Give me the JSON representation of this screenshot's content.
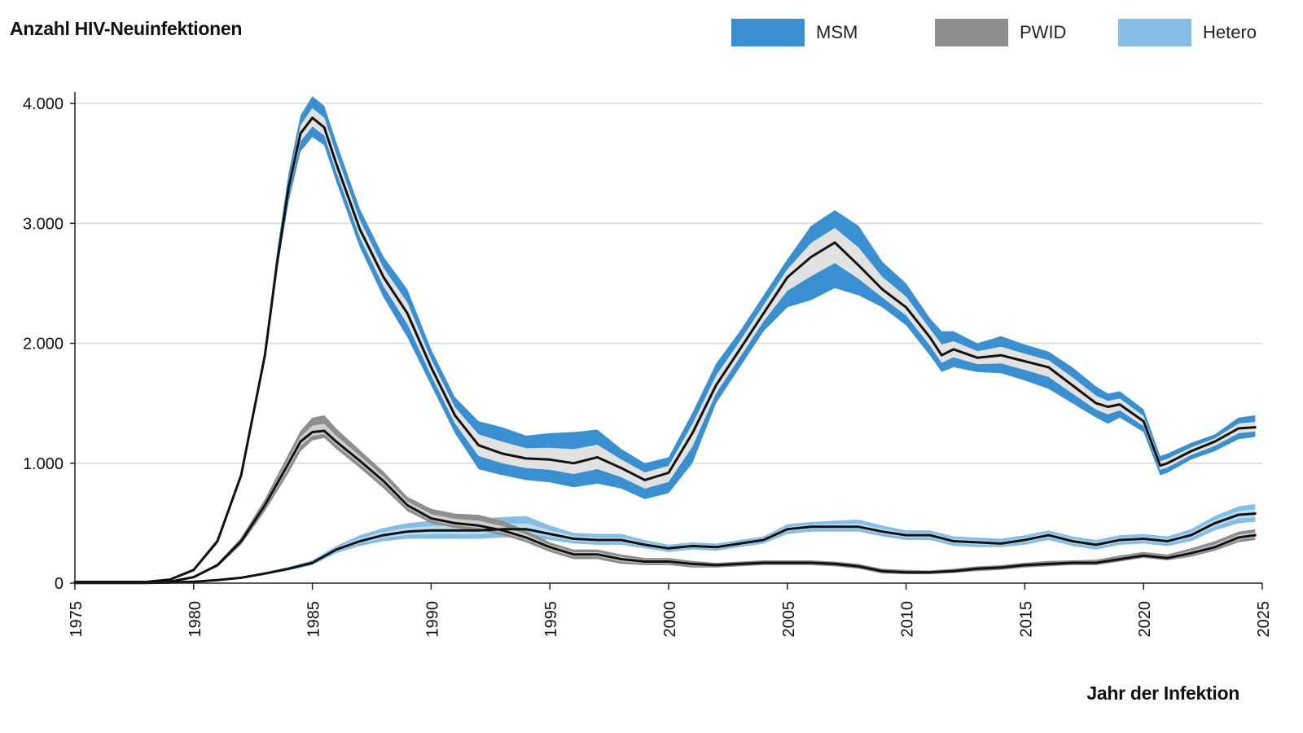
{
  "title": "Anzahl HIV-Neuinfektionen",
  "legend": [
    {
      "name": "MSM",
      "color": "#3a8fd0"
    },
    {
      "name": "PWID",
      "color": "#8e8e8e"
    },
    {
      "name": "Hetero",
      "color": "#86bde5"
    }
  ],
  "chart_data": {
    "type": "area",
    "title": "Anzahl HIV-Neuinfektionen",
    "xlabel": "Jahr der Infektion",
    "ylabel": "",
    "xlim": [
      1975,
      2025
    ],
    "ylim": [
      0,
      4000
    ],
    "x_ticks": [
      1975,
      1980,
      1985,
      1990,
      1995,
      2000,
      2005,
      2010,
      2015,
      2020,
      2025
    ],
    "y_ticks": [
      {
        "value": 0,
        "label": "0"
      },
      {
        "value": 1000,
        "label": "1.000"
      },
      {
        "value": 2000,
        "label": "2.000"
      },
      {
        "value": 3000,
        "label": "3.000"
      },
      {
        "value": 4000,
        "label": "4.000"
      }
    ],
    "grid": "horizontal",
    "legend_position": "top-right",
    "series": [
      {
        "name": "MSM",
        "color": "#3a8fd0",
        "inner_color": "#e2e2e2",
        "x": [
          1975,
          1978,
          1979,
          1980,
          1981,
          1982,
          1983,
          1983.5,
          1984,
          1984.5,
          1985,
          1985.5,
          1986,
          1987,
          1988,
          1989,
          1990,
          1991,
          1992,
          1993,
          1994,
          1995,
          1996,
          1997,
          1998,
          1999,
          2000,
          2001,
          2002,
          2003,
          2004,
          2005,
          2006,
          2007,
          2008,
          2009,
          2010,
          2011,
          2011.5,
          2012,
          2013,
          2014,
          2015,
          2016,
          2017,
          2018,
          2018.5,
          2019,
          2020,
          2020.7,
          2021,
          2022,
          2023,
          2024,
          2024.7
        ],
        "y": [
          10,
          10,
          30,
          110,
          350,
          900,
          1900,
          2650,
          3300,
          3750,
          3880,
          3800,
          3500,
          2950,
          2550,
          2250,
          1800,
          1400,
          1150,
          1080,
          1040,
          1030,
          1000,
          1050,
          960,
          860,
          920,
          1250,
          1650,
          1950,
          2250,
          2550,
          2720,
          2840,
          2650,
          2450,
          2300,
          2050,
          1900,
          1950,
          1880,
          1900,
          1850,
          1800,
          1650,
          1500,
          1470,
          1490,
          1350,
          980,
          1000,
          1100,
          1180,
          1290,
          1300
        ],
        "lower": [
          10,
          10,
          28,
          100,
          330,
          870,
          1850,
          2600,
          3180,
          3600,
          3720,
          3650,
          3350,
          2800,
          2380,
          2050,
          1650,
          1250,
          950,
          900,
          860,
          840,
          800,
          830,
          790,
          700,
          750,
          1000,
          1500,
          1800,
          2100,
          2300,
          2360,
          2460,
          2400,
          2300,
          2150,
          1900,
          1760,
          1800,
          1760,
          1750,
          1690,
          1620,
          1500,
          1380,
          1330,
          1380,
          1260,
          900,
          920,
          1030,
          1100,
          1200,
          1220
        ],
        "upper": [
          10,
          10,
          32,
          120,
          370,
          930,
          1950,
          2750,
          3420,
          3900,
          4060,
          3980,
          3680,
          3120,
          2720,
          2450,
          1950,
          1550,
          1350,
          1300,
          1230,
          1250,
          1260,
          1280,
          1120,
          1000,
          1050,
          1420,
          1830,
          2100,
          2400,
          2700,
          2980,
          3110,
          2980,
          2680,
          2500,
          2210,
          2100,
          2100,
          2000,
          2060,
          1990,
          1930,
          1800,
          1640,
          1580,
          1600,
          1450,
          1060,
          1080,
          1170,
          1240,
          1380,
          1400
        ]
      },
      {
        "name": "PWID",
        "color": "#8e8e8e",
        "inner_color": "#cfcfcf",
        "x": [
          1975,
          1978,
          1979,
          1980,
          1981,
          1982,
          1983,
          1984,
          1984.5,
          1985,
          1985.5,
          1986,
          1987,
          1988,
          1989,
          1990,
          1991,
          1992,
          1993,
          1994,
          1995,
          1996,
          1997,
          1998,
          1999,
          2000,
          2001,
          2002,
          2003,
          2004,
          2005,
          2006,
          2007,
          2008,
          2009,
          2010,
          2011,
          2012,
          2013,
          2014,
          2015,
          2016,
          2017,
          2018,
          2019,
          2020,
          2021,
          2022,
          2023,
          2024,
          2024.7
        ],
        "y": [
          5,
          5,
          12,
          50,
          150,
          350,
          650,
          1000,
          1180,
          1260,
          1270,
          1180,
          1020,
          850,
          650,
          540,
          500,
          480,
          440,
          380,
          300,
          240,
          240,
          200,
          180,
          180,
          160,
          150,
          160,
          170,
          170,
          170,
          160,
          140,
          100,
          90,
          90,
          100,
          120,
          130,
          150,
          160,
          170,
          170,
          200,
          230,
          210,
          250,
          300,
          380,
          400
        ],
        "lower": [
          5,
          5,
          10,
          45,
          135,
          320,
          600,
          920,
          1100,
          1190,
          1210,
          1120,
          960,
          790,
          600,
          500,
          460,
          440,
          400,
          340,
          260,
          200,
          200,
          160,
          150,
          150,
          130,
          130,
          140,
          150,
          150,
          150,
          140,
          120,
          80,
          75,
          75,
          85,
          100,
          110,
          130,
          140,
          150,
          150,
          180,
          210,
          190,
          220,
          270,
          340,
          360
        ],
        "upper": [
          5,
          5,
          14,
          55,
          165,
          380,
          700,
          1080,
          1270,
          1380,
          1400,
          1290,
          1110,
          930,
          720,
          620,
          580,
          570,
          520,
          440,
          340,
          280,
          280,
          240,
          210,
          210,
          185,
          170,
          180,
          190,
          190,
          190,
          180,
          160,
          120,
          110,
          105,
          120,
          140,
          150,
          170,
          185,
          190,
          195,
          230,
          260,
          240,
          290,
          350,
          430,
          450
        ]
      },
      {
        "name": "Hetero",
        "color": "#86bde5",
        "inner_color": "#bcdcf2",
        "x": [
          1975,
          1978,
          1979,
          1980,
          1981,
          1982,
          1983,
          1984,
          1985,
          1986,
          1987,
          1988,
          1989,
          1990,
          1991,
          1992,
          1993,
          1994,
          1995,
          1996,
          1997,
          1998,
          1999,
          2000,
          2001,
          2002,
          2003,
          2004,
          2005,
          2006,
          2007,
          2008,
          2009,
          2010,
          2011,
          2012,
          2013,
          2014,
          2015,
          2016,
          2017,
          2018,
          2019,
          2020,
          2021,
          2022,
          2023,
          2024,
          2024.7
        ],
        "y": [
          2,
          2,
          5,
          12,
          25,
          45,
          80,
          120,
          170,
          280,
          350,
          400,
          430,
          440,
          440,
          440,
          450,
          450,
          410,
          370,
          360,
          360,
          320,
          290,
          310,
          300,
          330,
          360,
          450,
          470,
          470,
          470,
          430,
          400,
          400,
          350,
          340,
          330,
          360,
          400,
          350,
          320,
          360,
          370,
          350,
          400,
          500,
          570,
          580
        ],
        "lower": [
          2,
          2,
          4,
          10,
          22,
          40,
          70,
          105,
          150,
          250,
          310,
          350,
          370,
          370,
          370,
          370,
          380,
          380,
          360,
          330,
          320,
          320,
          290,
          260,
          280,
          270,
          300,
          330,
          410,
          430,
          430,
          430,
          390,
          360,
          360,
          310,
          300,
          300,
          320,
          360,
          310,
          280,
          320,
          330,
          310,
          350,
          440,
          500,
          510
        ],
        "upper": [
          2,
          2,
          6,
          14,
          28,
          50,
          90,
          135,
          190,
          310,
          400,
          460,
          500,
          520,
          530,
          540,
          550,
          560,
          480,
          420,
          410,
          410,
          360,
          320,
          340,
          330,
          360,
          390,
          490,
          510,
          520,
          530,
          480,
          440,
          440,
          390,
          380,
          370,
          400,
          440,
          390,
          360,
          400,
          410,
          390,
          450,
          560,
          640,
          660
        ]
      }
    ]
  }
}
